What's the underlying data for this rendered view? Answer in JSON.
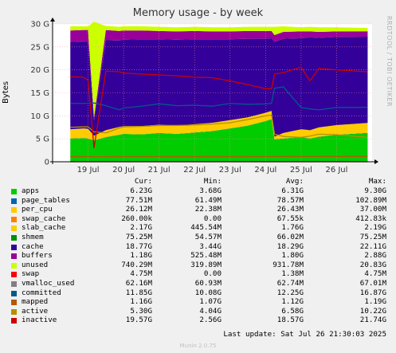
{
  "title": "Memory usage - by week",
  "ylabel": "Bytes",
  "side_text": "RRDTOOL / TOBI OETIKER",
  "footer": {
    "last_update": "Last update: Sat Jul 26 21:30:03 2025",
    "version": "Munin 2.0.75"
  },
  "legend_headers": [
    "Cur:",
    "Min:",
    "Avg:",
    "Max:"
  ],
  "legend": [
    {
      "name": "apps",
      "color": "#00cc00",
      "cur": "6.23G",
      "min": "3.68G",
      "avg": "6.31G",
      "max": "9.30G"
    },
    {
      "name": "page_tables",
      "color": "#0066b3",
      "cur": "77.51M",
      "min": "61.49M",
      "avg": "78.57M",
      "max": "102.89M"
    },
    {
      "name": "per_cpu",
      "color": "#ffcc00",
      "cur": "26.12M",
      "min": "22.38M",
      "avg": "26.43M",
      "max": "37.00M"
    },
    {
      "name": "swap_cache",
      "color": "#ff8000",
      "cur": "260.00k",
      "min": "0.00",
      "avg": "67.55k",
      "max": "412.83k"
    },
    {
      "name": "slab_cache",
      "color": "#ffcc00",
      "cur": "2.17G",
      "min": "445.54M",
      "avg": "1.76G",
      "max": "2.19G"
    },
    {
      "name": "shmem",
      "color": "#008f00",
      "cur": "75.25M",
      "min": "54.57M",
      "avg": "66.02M",
      "max": "75.25M"
    },
    {
      "name": "cache",
      "color": "#330099",
      "cur": "18.77G",
      "min": "3.44G",
      "avg": "18.29G",
      "max": "22.11G"
    },
    {
      "name": "buffers",
      "color": "#990099",
      "cur": "1.18G",
      "min": "525.48M",
      "avg": "1.80G",
      "max": "2.88G"
    },
    {
      "name": "unused",
      "color": "#ccff00",
      "cur": "740.29M",
      "min": "319.89M",
      "avg": "931.78M",
      "max": "20.83G"
    },
    {
      "name": "swap",
      "color": "#ff0000",
      "cur": "4.75M",
      "min": "0.00",
      "avg": "1.38M",
      "max": "4.75M"
    },
    {
      "name": "vmalloc_used",
      "color": "#808080",
      "cur": "62.16M",
      "min": "60.93M",
      "avg": "62.74M",
      "max": "67.01M"
    },
    {
      "name": "committed",
      "color": "#005a8c",
      "cur": "11.85G",
      "min": "10.08G",
      "avg": "12.25G",
      "max": "16.87G"
    },
    {
      "name": "mapped",
      "color": "#b35900",
      "cur": "1.16G",
      "min": "1.07G",
      "avg": "1.12G",
      "max": "1.19G"
    },
    {
      "name": "active",
      "color": "#b39000",
      "cur": "5.30G",
      "min": "4.04G",
      "avg": "6.58G",
      "max": "10.22G"
    },
    {
      "name": "inactive",
      "color": "#cc0000",
      "cur": "19.57G",
      "min": "2.56G",
      "avg": "18.57G",
      "max": "21.74G"
    }
  ],
  "chart_data": {
    "type": "area",
    "title": "Memory usage - by week",
    "ylabel": "Bytes",
    "y_unit": "G",
    "ylim": [
      0,
      30
    ],
    "yticks": [
      "0",
      "5 G",
      "10 G",
      "15 G",
      "20 G",
      "25 G",
      "30 G"
    ],
    "xlim_days": [
      "Jul 18",
      "Jul 27"
    ],
    "xticks": [
      "19 Jul",
      "20 Jul",
      "21 Jul",
      "22 Jul",
      "23 Jul",
      "24 Jul",
      "25 Jul",
      "26 Jul"
    ],
    "grid": true,
    "x": [
      "Jul 18 12:00",
      "Jul 18 21:00",
      "Jul 19 00:00",
      "Jul 19 04:00",
      "Jul 19 12:00",
      "Jul 19 21:00",
      "Jul 20 00:00",
      "Jul 20 12:00",
      "Jul 21 00:00",
      "Jul 21 12:00",
      "Jul 22 00:00",
      "Jul 22 12:00",
      "Jul 23 00:00",
      "Jul 23 12:00",
      "Jul 24 00:00",
      "Jul 24 04:00",
      "Jul 24 06:00",
      "Jul 24 12:00",
      "Jul 25 00:00",
      "Jul 25 06:00",
      "Jul 25 12:00",
      "Jul 26 00:00",
      "Jul 26 21:00"
    ],
    "stacked_series": [
      {
        "name": "apps",
        "color": "#00cc00",
        "values": [
          5.0,
          5.1,
          5.0,
          4.6,
          5.3,
          5.8,
          6.0,
          5.9,
          6.2,
          6.0,
          6.3,
          6.6,
          7.2,
          7.8,
          8.8,
          9.2,
          4.8,
          5.0,
          5.3,
          5.0,
          5.4,
          5.8,
          6.2
        ]
      },
      {
        "name": "shmem",
        "color": "#008f00",
        "values": [
          0.07,
          0.07,
          0.07,
          0.07,
          0.07,
          0.07,
          0.07,
          0.07,
          0.07,
          0.07,
          0.07,
          0.07,
          0.07,
          0.07,
          0.07,
          0.07,
          0.07,
          0.07,
          0.07,
          0.07,
          0.07,
          0.07,
          0.08
        ]
      },
      {
        "name": "slab_cache",
        "color": "#ffcc00",
        "values": [
          2.0,
          2.1,
          2.1,
          1.0,
          1.5,
          1.7,
          1.7,
          1.8,
          1.8,
          1.8,
          1.8,
          1.8,
          1.8,
          1.8,
          1.8,
          1.8,
          0.6,
          1.2,
          1.7,
          1.8,
          2.0,
          2.1,
          2.17
        ]
      },
      {
        "name": "cache",
        "color": "#330099",
        "values": [
          19.0,
          18.9,
          19.0,
          3.4,
          19.6,
          18.8,
          18.8,
          18.9,
          18.6,
          18.7,
          18.5,
          18.2,
          17.6,
          17.1,
          16.1,
          15.8,
          20.6,
          20.5,
          19.8,
          20.2,
          19.5,
          19.2,
          18.77
        ]
      },
      {
        "name": "buffers",
        "color": "#990099",
        "values": [
          2.5,
          2.5,
          2.5,
          0.6,
          2.2,
          2.1,
          2.0,
          1.9,
          1.8,
          1.8,
          1.8,
          1.7,
          1.7,
          1.7,
          1.7,
          1.6,
          1.5,
          1.5,
          1.5,
          1.3,
          1.3,
          1.2,
          1.18
        ]
      },
      {
        "name": "unused",
        "color": "#ccff00",
        "values": [
          0.9,
          0.8,
          0.8,
          20.8,
          0.9,
          0.9,
          0.9,
          0.9,
          0.9,
          0.9,
          0.9,
          0.9,
          0.9,
          0.9,
          0.9,
          0.9,
          1.8,
          1.2,
          0.9,
          1.0,
          1.0,
          0.9,
          0.74
        ]
      }
    ],
    "line_series": [
      {
        "name": "committed",
        "color": "#005a8c",
        "values": [
          12.7,
          12.7,
          12.7,
          12.8,
          12.2,
          11.3,
          11.7,
          12.1,
          12.6,
          12.2,
          12.3,
          12.1,
          12.7,
          12.5,
          12.6,
          12.7,
          16.0,
          16.3,
          11.8,
          11.5,
          11.3,
          11.8,
          11.85
        ]
      },
      {
        "name": "active",
        "color": "#b39000",
        "values": [
          7.5,
          7.6,
          7.6,
          6.5,
          6.3,
          7.3,
          7.6,
          7.7,
          7.9,
          7.9,
          8.0,
          8.2,
          8.5,
          9.2,
          10.0,
          10.2,
          6.0,
          5.5,
          5.3,
          5.6,
          6.0,
          5.9,
          5.3
        ]
      },
      {
        "name": "inactive",
        "color": "#cc0000",
        "values": [
          18.5,
          18.4,
          17.7,
          3.0,
          19.7,
          19.6,
          19.3,
          19.1,
          18.9,
          18.7,
          18.4,
          18.3,
          17.6,
          16.8,
          15.9,
          15.9,
          19.1,
          19.4,
          20.6,
          17.6,
          20.3,
          20.0,
          19.57
        ]
      },
      {
        "name": "mapped",
        "color": "#b35900",
        "values": [
          1.12,
          1.12,
          1.12,
          1.1,
          1.1,
          1.12,
          1.12,
          1.13,
          1.12,
          1.12,
          1.12,
          1.12,
          1.12,
          1.12,
          1.13,
          1.13,
          1.15,
          1.15,
          1.14,
          1.15,
          1.15,
          1.16,
          1.16
        ]
      },
      {
        "name": "swap",
        "color": "#ff0000",
        "values": [
          0.0,
          0.0,
          0.0,
          0.0,
          0.0,
          0.0,
          0.0,
          0.0,
          0.0,
          0.0,
          0.0,
          0.0,
          0.0,
          0.0,
          0.0,
          0.0,
          0.0,
          0.0,
          0.0,
          0.0,
          0.0,
          0.0,
          0.005
        ]
      }
    ]
  }
}
